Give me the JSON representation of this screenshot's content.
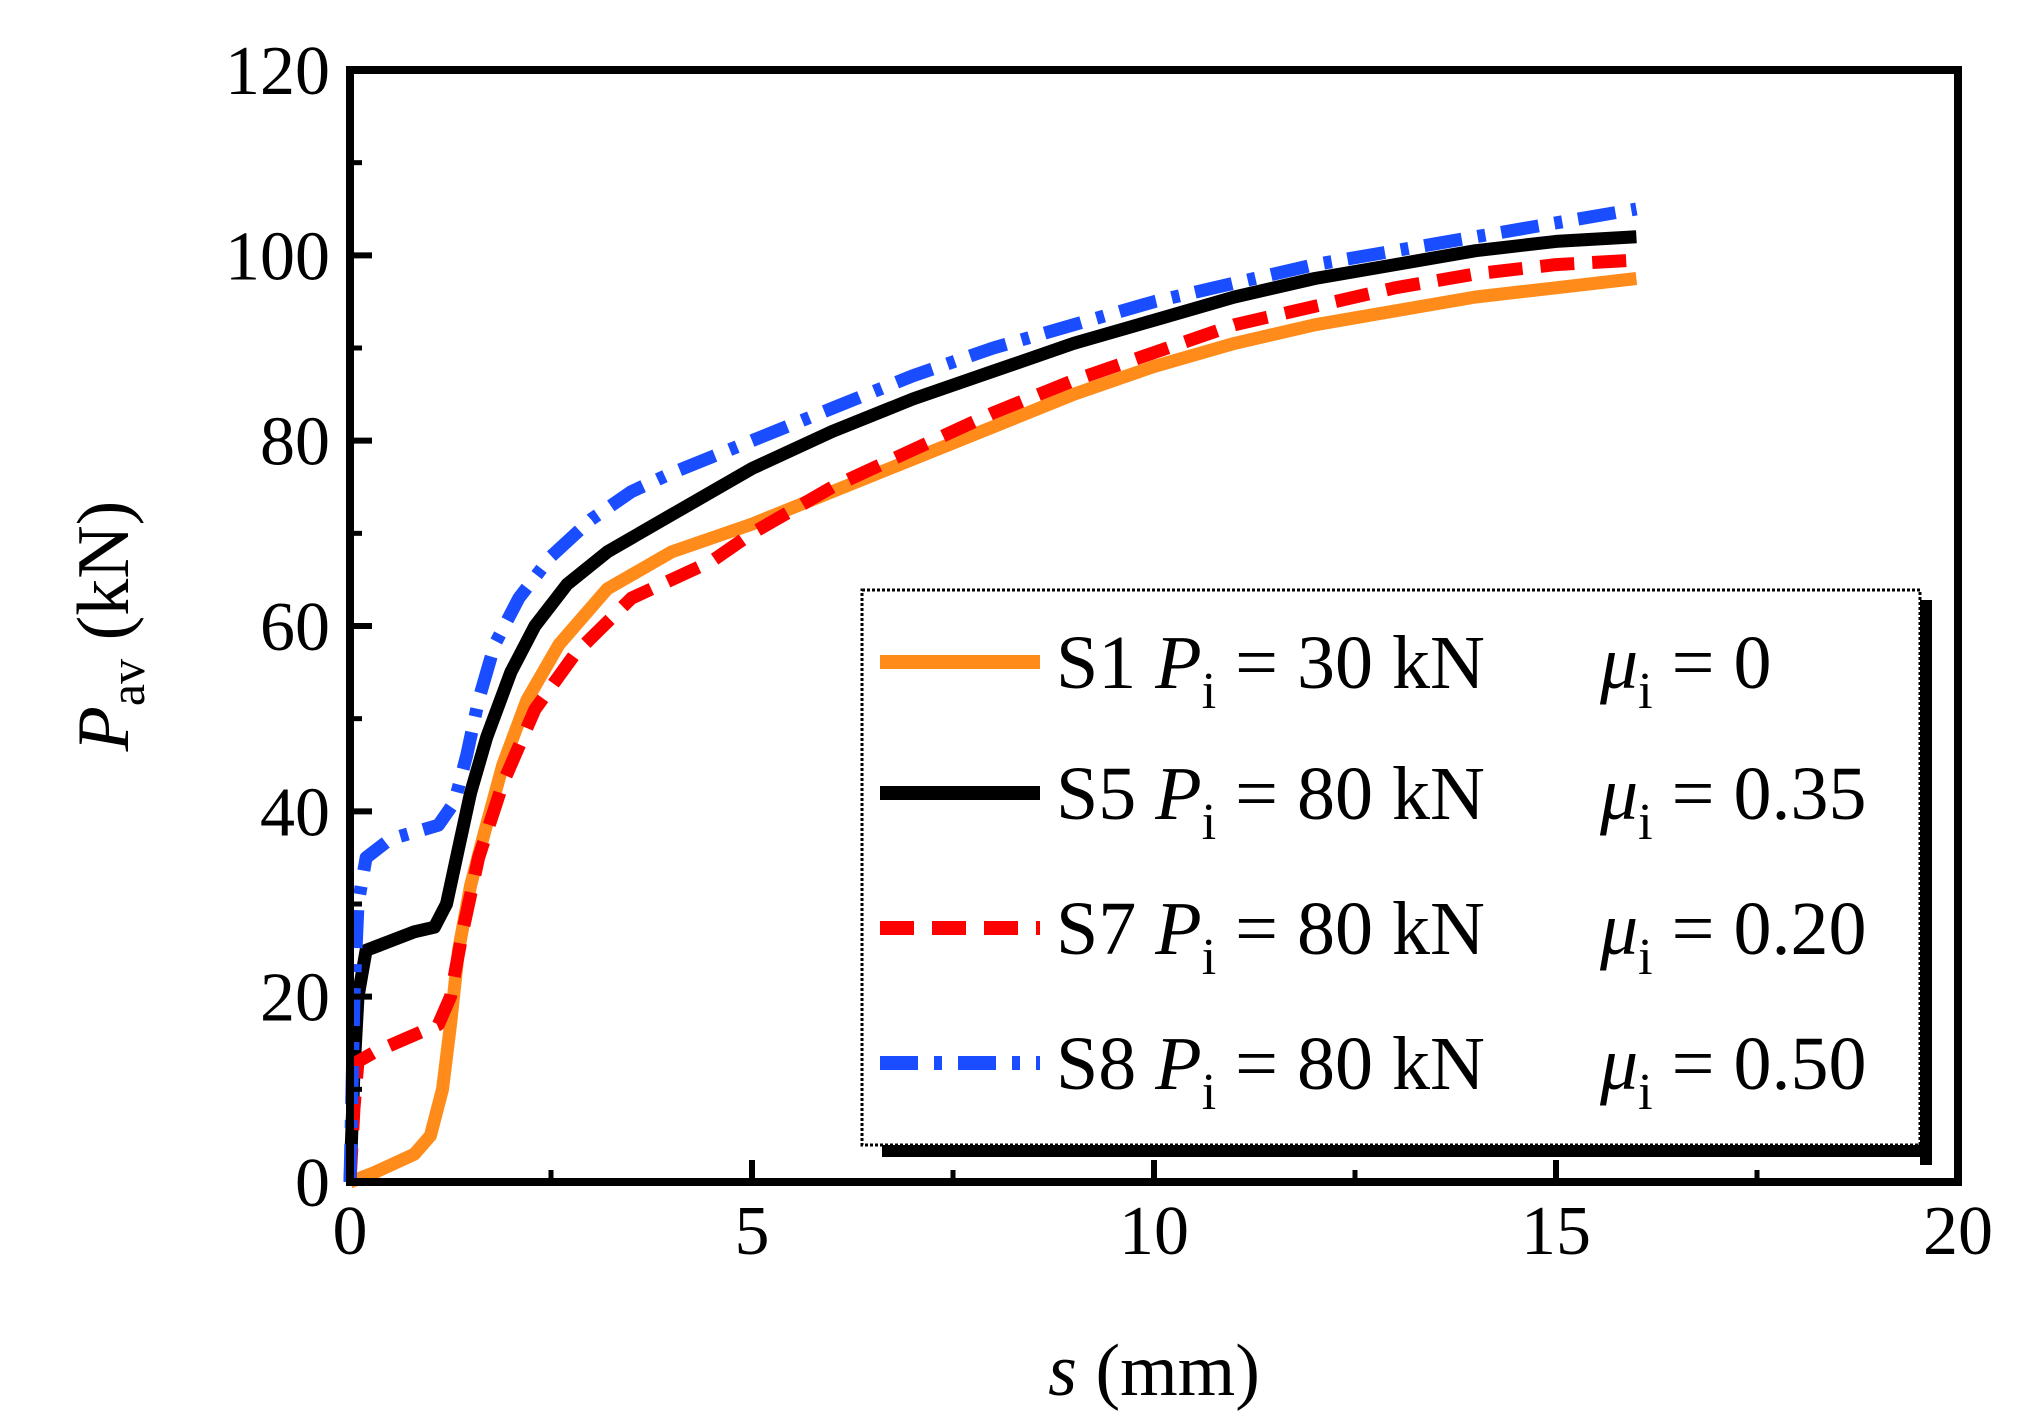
{
  "chart_data": {
    "type": "line",
    "title": "",
    "xlabel": {
      "symbol": "s",
      "unit": "(mm)"
    },
    "ylabel": {
      "symbol": "P",
      "sub": "av",
      "unit": "(kN)"
    },
    "xlim": [
      0,
      20
    ],
    "ylim": [
      0,
      120
    ],
    "xticks": [
      0,
      5,
      10,
      15,
      20
    ],
    "yticks": [
      0,
      20,
      40,
      60,
      80,
      100,
      120
    ],
    "grid": false,
    "legend_position": "lower-right",
    "series": [
      {
        "name": "S1",
        "label": {
          "id": "S1",
          "p": "P",
          "p_sub": "i",
          "p_val": "= 30 kN",
          "mu": "μ",
          "mu_sub": "i",
          "mu_val": "= 0"
        },
        "color": "#FF8C1A",
        "dash": "solid",
        "x": [
          0,
          0.3,
          0.8,
          1.0,
          1.15,
          1.25,
          1.35,
          1.5,
          1.65,
          1.9,
          2.2,
          2.6,
          3.2,
          4.0,
          5.0,
          6.0,
          7.0,
          8.0,
          9.0,
          10.0,
          11.0,
          12.0,
          13.0,
          14.0,
          15.0,
          16.0
        ],
        "y": [
          0,
          1,
          3,
          5,
          10,
          17,
          25,
          32,
          37,
          45,
          52,
          58,
          64,
          68,
          71,
          74.5,
          78,
          81.5,
          85,
          88,
          90.5,
          92.5,
          94,
          95.5,
          96.5,
          97.5
        ]
      },
      {
        "name": "S5",
        "label": {
          "id": "S5",
          "p": "P",
          "p_sub": "i",
          "p_val": "= 80 kN",
          "mu": "μ",
          "mu_sub": "i",
          "mu_val": "= 0.35"
        },
        "color": "#000000",
        "dash": "solid",
        "x": [
          0,
          0.05,
          0.1,
          0.2,
          0.5,
          0.8,
          1.05,
          1.2,
          1.35,
          1.5,
          1.7,
          2.0,
          2.3,
          2.7,
          3.2,
          4.0,
          5.0,
          6.0,
          7.0,
          8.0,
          9.0,
          10.0,
          11.0,
          12.0,
          13.0,
          14.0,
          15.0,
          16.0
        ],
        "y": [
          0,
          12,
          20,
          25,
          26,
          27,
          27.5,
          30,
          36,
          42,
          48,
          55,
          60,
          64.5,
          68,
          72,
          77,
          81,
          84.5,
          87.5,
          90.5,
          93,
          95.5,
          97.5,
          99,
          100.5,
          101.5,
          102
        ]
      },
      {
        "name": "S7",
        "label": {
          "id": "S7",
          "p": "P",
          "p_sub": "i",
          "p_val": "= 80 kN",
          "mu": "μ",
          "mu_sub": "i",
          "mu_val": "= 0.20"
        },
        "color": "#FF0000",
        "dash": "dashed",
        "x": [
          0,
          0.05,
          0.1,
          0.3,
          0.7,
          1.1,
          1.25,
          1.4,
          1.6,
          1.9,
          2.3,
          2.8,
          3.5,
          4.5,
          5.0,
          6.0,
          7.0,
          8.0,
          9.0,
          10.0,
          11.0,
          12.0,
          13.0,
          14.0,
          15.0,
          16.0
        ],
        "y": [
          0,
          8,
          13,
          14,
          15.5,
          17,
          20,
          27,
          35,
          43,
          51,
          57,
          63,
          67,
          70,
          75,
          79,
          83,
          86.5,
          89.5,
          92.5,
          94.5,
          96.5,
          98,
          99,
          99.5
        ]
      },
      {
        "name": "S8",
        "label": {
          "id": "S8",
          "p": "P",
          "p_sub": "i",
          "p_val": "= 80 kN",
          "mu": "μ",
          "mu_sub": "i",
          "mu_val": "= 0.50"
        },
        "color": "#1A4DFF",
        "dash": "dashdot",
        "x": [
          0,
          0.05,
          0.1,
          0.2,
          0.5,
          0.9,
          1.1,
          1.3,
          1.45,
          1.6,
          1.8,
          2.1,
          2.5,
          3.0,
          3.5,
          4.0,
          5.0,
          6.0,
          7.0,
          8.0,
          9.0,
          10.0,
          11.0,
          12.0,
          13.0,
          14.0,
          15.0,
          16.0
        ],
        "y": [
          0,
          20,
          30,
          35,
          37,
          38,
          38.5,
          41,
          46,
          52,
          58,
          63,
          67.5,
          71.5,
          74.5,
          76.5,
          80,
          83.5,
          87,
          90,
          92.5,
          95,
          97,
          99,
          100.5,
          102,
          103.5,
          105
        ]
      }
    ]
  }
}
